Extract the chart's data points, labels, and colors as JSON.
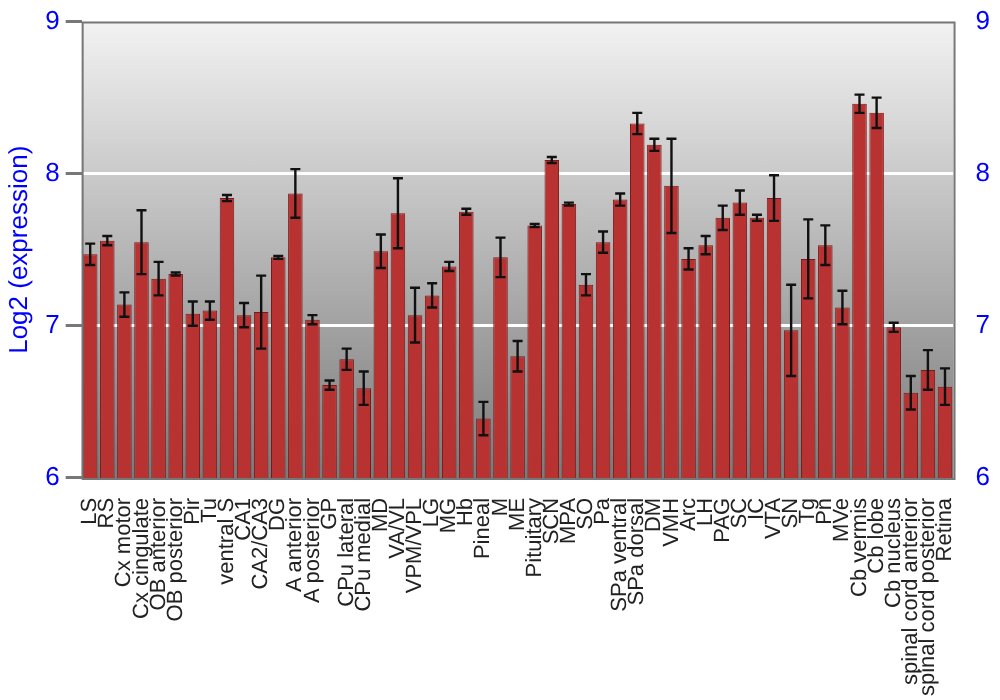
{
  "chart_data": {
    "type": "bar",
    "ylabel": "Log2 (expression)",
    "categories": [
      "LS",
      "RS",
      "Cx motor",
      "Cx cingulate",
      "OB anterior",
      "OB posterior",
      "Pir",
      "Tu",
      "ventral S",
      "CA1",
      "CA2/CA3",
      "DG",
      "A anterior",
      "A posterior",
      "GP",
      "CPu lateral",
      "CPu medial",
      "MD",
      "VA/VL",
      "VPM/VPL",
      "LG",
      "MG",
      "Hb",
      "Pineal",
      "M",
      "ME",
      "Pituitary",
      "SCN",
      "MPA",
      "SO",
      "Pa",
      "SPa ventral",
      "SPa dorsal",
      "DM",
      "VMH",
      "Arc",
      "LH",
      "PAG",
      "SC",
      "IC",
      "VTA",
      "SN",
      "Tg",
      "Pn",
      "MVe",
      "Cb vermis",
      "Cb lobe",
      "Cb nucleus",
      "spinal cord anterior",
      "spinal cord posterior",
      "Retina"
    ],
    "values": [
      7.47,
      7.56,
      7.14,
      7.55,
      7.31,
      7.34,
      7.08,
      7.1,
      7.84,
      7.07,
      7.09,
      7.45,
      7.87,
      7.04,
      6.61,
      6.78,
      6.59,
      7.49,
      7.74,
      7.07,
      7.2,
      7.39,
      7.75,
      6.39,
      7.45,
      6.8,
      7.66,
      8.09,
      7.8,
      7.27,
      7.55,
      7.83,
      8.33,
      8.19,
      7.92,
      7.44,
      7.53,
      7.71,
      7.81,
      7.71,
      7.84,
      6.97,
      7.44,
      7.53,
      7.12,
      8.46,
      8.4,
      6.99,
      6.56,
      6.71,
      6.6
    ],
    "errors": [
      0.07,
      0.03,
      0.08,
      0.21,
      0.11,
      0.01,
      0.08,
      0.06,
      0.02,
      0.08,
      0.24,
      0.01,
      0.16,
      0.03,
      0.03,
      0.07,
      0.11,
      0.11,
      0.23,
      0.18,
      0.08,
      0.03,
      0.02,
      0.11,
      0.13,
      0.1,
      0.01,
      0.02,
      0.01,
      0.07,
      0.07,
      0.04,
      0.07,
      0.04,
      0.31,
      0.07,
      0.06,
      0.08,
      0.08,
      0.02,
      0.15,
      0.3,
      0.26,
      0.13,
      0.11,
      0.06,
      0.1,
      0.03,
      0.11,
      0.13,
      0.12
    ],
    "color": "#b83232",
    "ylim": [
      6,
      9
    ],
    "yticks": [
      6,
      7,
      8,
      9
    ],
    "y2lim": [
      6,
      9
    ],
    "y2ticks": [
      6,
      7,
      8,
      9
    ],
    "grid": "y",
    "legend": false
  }
}
